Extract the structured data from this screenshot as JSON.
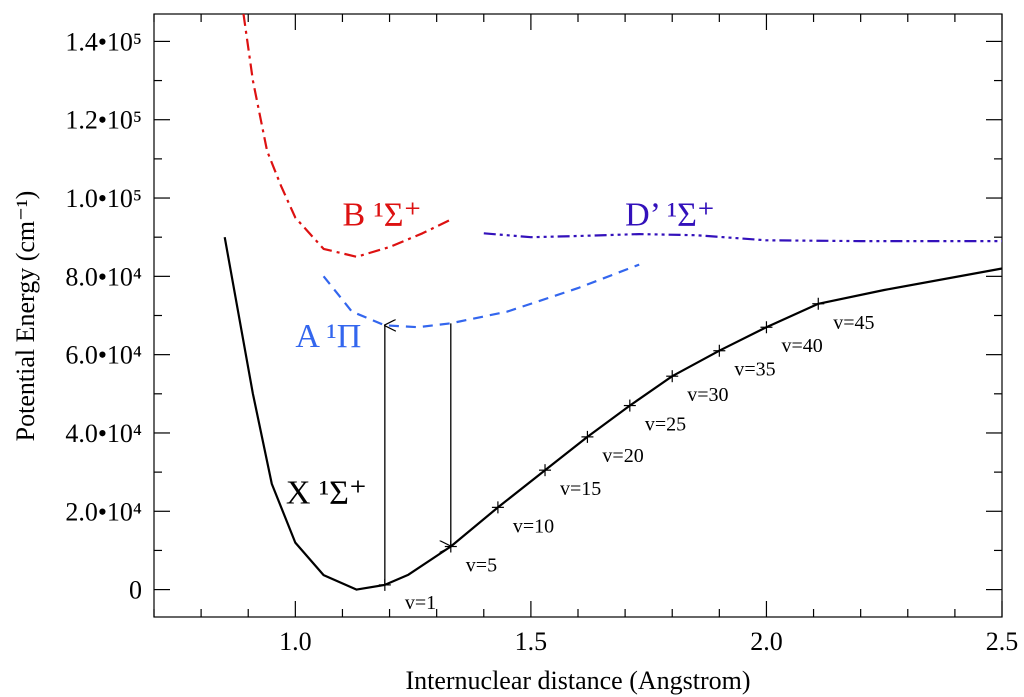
{
  "chart_data": {
    "type": "line",
    "xlabel": "Internuclear distance (Angstrom)",
    "ylabel": "Potential Energy (cm⁻¹)",
    "xlim": [
      0.7,
      2.5
    ],
    "ylim": [
      -7000,
      147000
    ],
    "grid": false,
    "x_ticks": [
      {
        "value": 1.0,
        "label": "1.0"
      },
      {
        "value": 1.5,
        "label": "1.5"
      },
      {
        "value": 2.0,
        "label": "2.0"
      },
      {
        "value": 2.5,
        "label": "2.5"
      }
    ],
    "y_ticks": [
      {
        "value": 0,
        "label": "0"
      },
      {
        "value": 20000,
        "label": "2.0•10⁴"
      },
      {
        "value": 40000,
        "label": "4.0•10⁴"
      },
      {
        "value": 60000,
        "label": "6.0•10⁴"
      },
      {
        "value": 80000,
        "label": "8.0•10⁴"
      },
      {
        "value": 100000,
        "label": "1.0•10⁵"
      },
      {
        "value": 120000,
        "label": "1.2•10⁵"
      },
      {
        "value": 140000,
        "label": "1.4•10⁵"
      }
    ],
    "series": [
      {
        "name": "X ¹Σ⁺",
        "color": "#000000",
        "dash": "solid",
        "label_at": [
          0.98,
          22000
        ],
        "x": [
          0.85,
          0.91,
          0.95,
          1.0,
          1.06,
          1.13,
          1.19,
          1.24,
          1.33,
          1.43,
          1.53,
          1.62,
          1.71,
          1.8,
          1.9,
          2.0,
          2.11,
          2.25,
          2.5
        ],
        "y": [
          90000,
          50000,
          27000,
          12000,
          3700,
          0,
          1200,
          3800,
          11000,
          21000,
          30500,
          39000,
          47000,
          54500,
          61000,
          67000,
          73000,
          76500,
          82000
        ]
      },
      {
        "name": "A ¹Π",
        "color": "#3366ee",
        "dash": "dashed",
        "label_at": [
          1.0,
          62000
        ],
        "x": [
          1.06,
          1.12,
          1.19,
          1.26,
          1.33,
          1.45,
          1.6,
          1.73
        ],
        "y": [
          80000,
          71000,
          67500,
          67000,
          68000,
          71000,
          77000,
          83000
        ]
      },
      {
        "name": "B ¹Σ⁺",
        "color": "#dd1111",
        "dash": "dashdot",
        "label_at": [
          1.1,
          93000
        ],
        "x": [
          0.89,
          0.91,
          0.94,
          0.97,
          1.0,
          1.06,
          1.13,
          1.2,
          1.27,
          1.33
        ],
        "y": [
          147000,
          130000,
          112000,
          103000,
          95000,
          87000,
          85000,
          87500,
          91000,
          94500
        ]
      },
      {
        "name": "D’ ¹Σ⁺",
        "color": "#3311bb",
        "dash": "dashdotdotdot",
        "label_at": [
          1.7,
          93000
        ],
        "x": [
          1.4,
          1.5,
          1.6,
          1.73,
          1.85,
          2.0,
          2.2,
          2.5
        ],
        "y": [
          91000,
          90000,
          90300,
          90800,
          90500,
          89200,
          89000,
          89000
        ]
      }
    ],
    "vibrational_levels": [
      {
        "label": "v=1",
        "x": 1.19,
        "y": 1200
      },
      {
        "label": "v=5",
        "x": 1.33,
        "y": 11000
      },
      {
        "label": "v=10",
        "x": 1.43,
        "y": 21000
      },
      {
        "label": "v=15",
        "x": 1.53,
        "y": 30500
      },
      {
        "label": "v=20",
        "x": 1.62,
        "y": 39000
      },
      {
        "label": "v=25",
        "x": 1.71,
        "y": 47000
      },
      {
        "label": "v=30",
        "x": 1.8,
        "y": 54500
      },
      {
        "label": "v=35",
        "x": 1.9,
        "y": 61000
      },
      {
        "label": "v=40",
        "x": 2.0,
        "y": 67000
      },
      {
        "label": "v=45",
        "x": 2.11,
        "y": 73000
      }
    ],
    "transitions": [
      {
        "from": [
          1.19,
          1200
        ],
        "to": [
          1.19,
          67500
        ],
        "direction": "up"
      },
      {
        "from": [
          1.33,
          68000
        ],
        "to": [
          1.33,
          11000
        ],
        "direction": "down"
      }
    ]
  }
}
